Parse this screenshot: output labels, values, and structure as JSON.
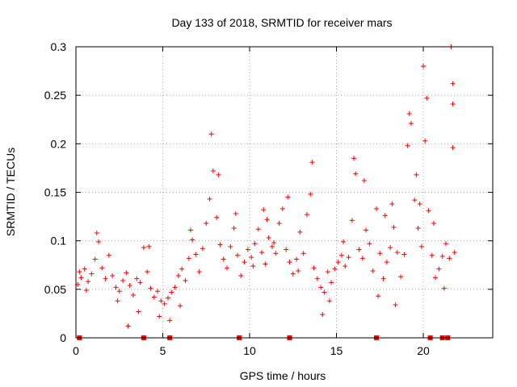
{
  "chart_data": {
    "type": "scatter",
    "title": "Day 133 of 2018, SRMTID for receiver mars",
    "xlabel": "GPS time / hours",
    "ylabel": "SRMTID / TECUs",
    "xlim": [
      0,
      24
    ],
    "ylim": [
      0,
      0.3
    ],
    "x_ticks": [
      0,
      5,
      10,
      15,
      20
    ],
    "x_tick_labels": [
      "0",
      "5",
      "10",
      "15",
      "20"
    ],
    "y_ticks": [
      0,
      0.05,
      0.1,
      0.15,
      0.2,
      0.25,
      0.3
    ],
    "y_tick_labels": [
      "0",
      "0.05",
      "0.1",
      "0.15",
      "0.2",
      "0.25",
      "0.3"
    ],
    "grid": true,
    "marker": "+",
    "color": "#ff0000",
    "series": [
      {
        "name": "SRMTID",
        "points": [
          [
            0.1,
            0.055
          ],
          [
            0.3,
            0.062
          ],
          [
            0.5,
            0.071
          ],
          [
            0.7,
            0.058
          ],
          [
            0.9,
            0.066
          ],
          [
            1.1,
            0.081
          ],
          [
            1.3,
            0.099
          ],
          [
            1.5,
            0.072
          ],
          [
            1.7,
            0.061
          ],
          [
            1.9,
            0.085
          ],
          [
            2.1,
            0.064
          ],
          [
            2.3,
            0.052
          ],
          [
            2.5,
            0.048
          ],
          [
            2.7,
            0.059
          ],
          [
            2.9,
            0.067
          ],
          [
            3.1,
            0.054
          ],
          [
            3.3,
            0.044
          ],
          [
            3.5,
            0.061
          ],
          [
            3.7,
            0.057
          ],
          [
            3.9,
            0.093
          ],
          [
            4.1,
            0.068
          ],
          [
            4.3,
            0.051
          ],
          [
            4.5,
            0.042
          ],
          [
            4.7,
            0.048
          ],
          [
            4.9,
            0.038
          ],
          [
            5.1,
            0.035
          ],
          [
            5.3,
            0.041
          ],
          [
            5.5,
            0.047
          ],
          [
            5.7,
            0.052
          ],
          [
            5.9,
            0.064
          ],
          [
            6.1,
            0.071
          ],
          [
            6.3,
            0.059
          ],
          [
            6.5,
            0.082
          ],
          [
            6.7,
            0.101
          ],
          [
            6.9,
            0.086
          ],
          [
            7.1,
            0.068
          ],
          [
            7.3,
            0.092
          ],
          [
            7.5,
            0.118
          ],
          [
            7.7,
            0.143
          ],
          [
            7.9,
            0.172
          ],
          [
            8.1,
            0.124
          ],
          [
            8.3,
            0.096
          ],
          [
            8.5,
            0.081
          ],
          [
            8.7,
            0.072
          ],
          [
            8.9,
            0.094
          ],
          [
            9.1,
            0.113
          ],
          [
            9.3,
            0.085
          ],
          [
            9.5,
            0.064
          ],
          [
            9.7,
            0.078
          ],
          [
            9.9,
            0.091
          ],
          [
            10.1,
            0.083
          ],
          [
            10.3,
            0.097
          ],
          [
            10.5,
            0.112
          ],
          [
            10.7,
            0.088
          ],
          [
            10.9,
            0.076
          ],
          [
            11.1,
            0.103
          ],
          [
            11.3,
            0.094
          ],
          [
            11.5,
            0.087
          ],
          [
            11.7,
            0.118
          ],
          [
            11.9,
            0.133
          ],
          [
            12.1,
            0.091
          ],
          [
            12.3,
            0.078
          ],
          [
            12.5,
            0.066
          ],
          [
            12.7,
            0.081
          ],
          [
            12.9,
            0.109
          ],
          [
            13.1,
            0.087
          ],
          [
            13.3,
            0.127
          ],
          [
            13.5,
            0.148
          ],
          [
            13.7,
            0.072
          ],
          [
            13.9,
            0.061
          ],
          [
            14.1,
            0.052
          ],
          [
            14.3,
            0.047
          ],
          [
            14.5,
            0.068
          ],
          [
            14.7,
            0.057
          ],
          [
            14.9,
            0.071
          ],
          [
            15.1,
            0.078
          ],
          [
            15.3,
            0.085
          ],
          [
            15.5,
            0.074
          ],
          [
            15.7,
            0.083
          ],
          [
            15.9,
            0.121
          ],
          [
            16.1,
            0.169
          ],
          [
            16.3,
            0.091
          ],
          [
            16.5,
            0.082
          ],
          [
            16.7,
            0.111
          ],
          [
            16.9,
            0.097
          ],
          [
            17.1,
            0.069
          ],
          [
            17.3,
            0.133
          ],
          [
            17.5,
            0.087
          ],
          [
            17.7,
            0.061
          ],
          [
            17.9,
            0.078
          ],
          [
            18.1,
            0.093
          ],
          [
            18.3,
            0.114
          ],
          [
            18.5,
            0.088
          ],
          [
            18.7,
            0.063
          ],
          [
            18.9,
            0.086
          ],
          [
            19.1,
            0.198
          ],
          [
            19.3,
            0.221
          ],
          [
            19.5,
            0.142
          ],
          [
            19.7,
            0.113
          ],
          [
            19.9,
            0.094
          ],
          [
            20.1,
            0.203
          ],
          [
            20.3,
            0.131
          ],
          [
            20.5,
            0.085
          ],
          [
            20.7,
            0.062
          ],
          [
            20.9,
            0.071
          ],
          [
            21.1,
            0.084
          ],
          [
            21.3,
            0.097
          ],
          [
            21.5,
            0.082
          ],
          [
            21.7,
            0.196
          ],
          [
            21.8,
            0.088
          ],
          [
            0.2,
            0.068
          ],
          [
            0.6,
            0.049
          ],
          [
            1.2,
            0.108
          ],
          [
            2.4,
            0.038
          ],
          [
            3.0,
            0.012
          ],
          [
            3.6,
            0.027
          ],
          [
            4.2,
            0.094
          ],
          [
            4.8,
            0.022
          ],
          [
            5.4,
            0.018
          ],
          [
            6.0,
            0.033
          ],
          [
            6.6,
            0.111
          ],
          [
            7.8,
            0.21
          ],
          [
            8.2,
            0.168
          ],
          [
            9.2,
            0.128
          ],
          [
            10.8,
            0.132
          ],
          [
            11.4,
            0.098
          ],
          [
            12.2,
            0.145
          ],
          [
            12.8,
            0.069
          ],
          [
            13.6,
            0.181
          ],
          [
            14.2,
            0.024
          ],
          [
            14.6,
            0.038
          ],
          [
            15.4,
            0.099
          ],
          [
            16.0,
            0.185
          ],
          [
            16.6,
            0.162
          ],
          [
            17.4,
            0.043
          ],
          [
            18.4,
            0.034
          ],
          [
            19.2,
            0.231
          ],
          [
            19.6,
            0.168
          ],
          [
            20.0,
            0.28
          ],
          [
            20.2,
            0.247
          ],
          [
            21.2,
            0.051
          ],
          [
            21.6,
            0.3
          ],
          [
            21.7,
            0.262
          ],
          [
            21.7,
            0.241
          ],
          [
            20.6,
            0.118
          ],
          [
            19.8,
            0.138
          ],
          [
            18.2,
            0.138
          ],
          [
            17.8,
            0.126
          ],
          [
            11.0,
            0.122
          ],
          [
            10.2,
            0.074
          ]
        ]
      }
    ],
    "axis_markers_x": [
      0.2,
      3.9,
      5.4,
      9.4,
      12.3,
      17.3,
      20.4,
      21.1,
      21.4
    ]
  }
}
